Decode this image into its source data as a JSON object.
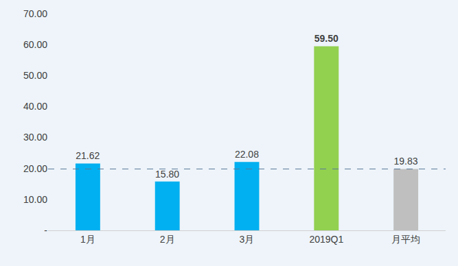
{
  "chart_data": {
    "type": "bar",
    "categories": [
      "1月",
      "2月",
      "3月",
      "2019Q1",
      "月平均"
    ],
    "values": [
      21.62,
      15.8,
      22.08,
      59.5,
      19.83
    ],
    "value_labels": [
      "21.62",
      "15.80",
      "22.08",
      "59.50",
      "19.83"
    ],
    "colors": [
      "#00b0f0",
      "#00b0f0",
      "#00b0f0",
      "#92d050",
      "#bfbfbf"
    ],
    "reference_line": 19.83,
    "ylim": [
      0,
      70
    ],
    "yticks": [
      {
        "value": 0,
        "label": "-"
      },
      {
        "value": 10,
        "label": "10.00"
      },
      {
        "value": 20,
        "label": "20.00"
      },
      {
        "value": 30,
        "label": "30.00"
      },
      {
        "value": 40,
        "label": "40.00"
      },
      {
        "value": 50,
        "label": "50.00"
      },
      {
        "value": 60,
        "label": "60.00"
      },
      {
        "value": 70,
        "label": "70.00"
      }
    ],
    "grid": false,
    "data_labels": true
  }
}
